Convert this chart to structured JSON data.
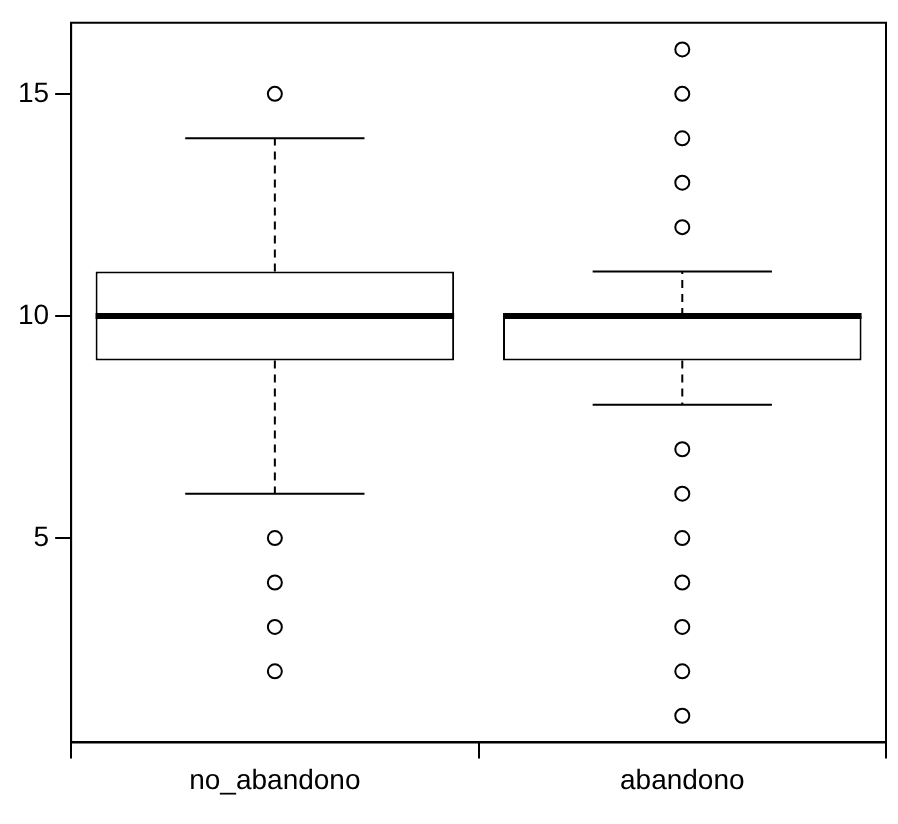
{
  "chart_data": {
    "type": "box",
    "categories": [
      "no_abandono",
      "abandono"
    ],
    "boxes": [
      {
        "low": 6,
        "q1": 9,
        "median": 10,
        "q3": 11,
        "high": 14,
        "outliers": [
          15,
          5,
          4,
          3,
          2
        ]
      },
      {
        "low": 8,
        "q1": 9,
        "median": 10,
        "q3": 10,
        "high": 11,
        "outliers": [
          16,
          15,
          14,
          13,
          12,
          7,
          6,
          5,
          4,
          3,
          2,
          1
        ]
      }
    ],
    "ylim": [
      0.4,
      16.6
    ],
    "yticks": [
      5,
      10,
      15
    ]
  }
}
